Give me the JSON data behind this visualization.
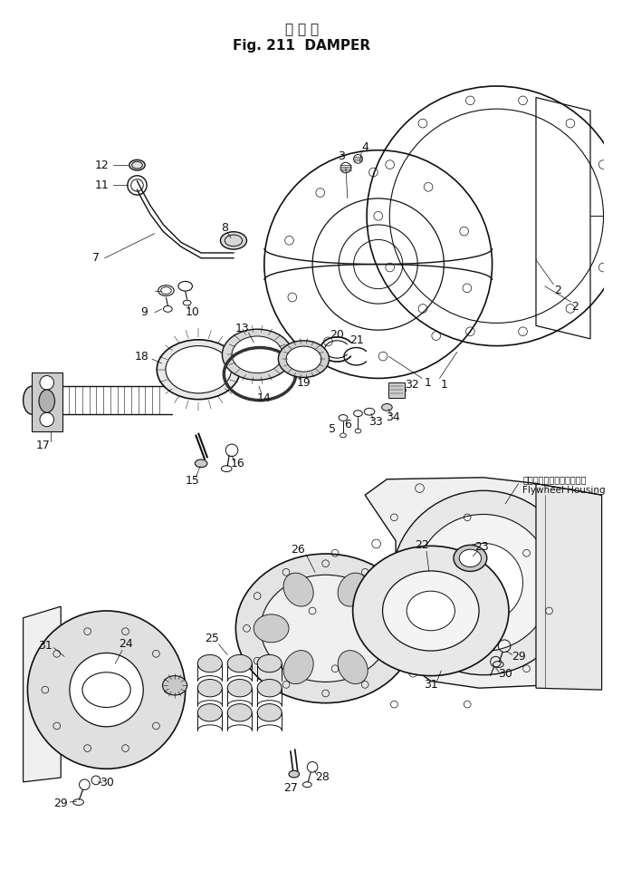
{
  "title_japanese": "ダ ン パ",
  "title_english": "Fig. 211  DAMPER",
  "bg_color": "#ffffff",
  "line_color": "#111111",
  "figsize": [
    6.87,
    9.82
  ],
  "dpi": 100,
  "flywheel_jp": "フライホイールハウジング",
  "flywheel_en": "Flywheel Housing"
}
